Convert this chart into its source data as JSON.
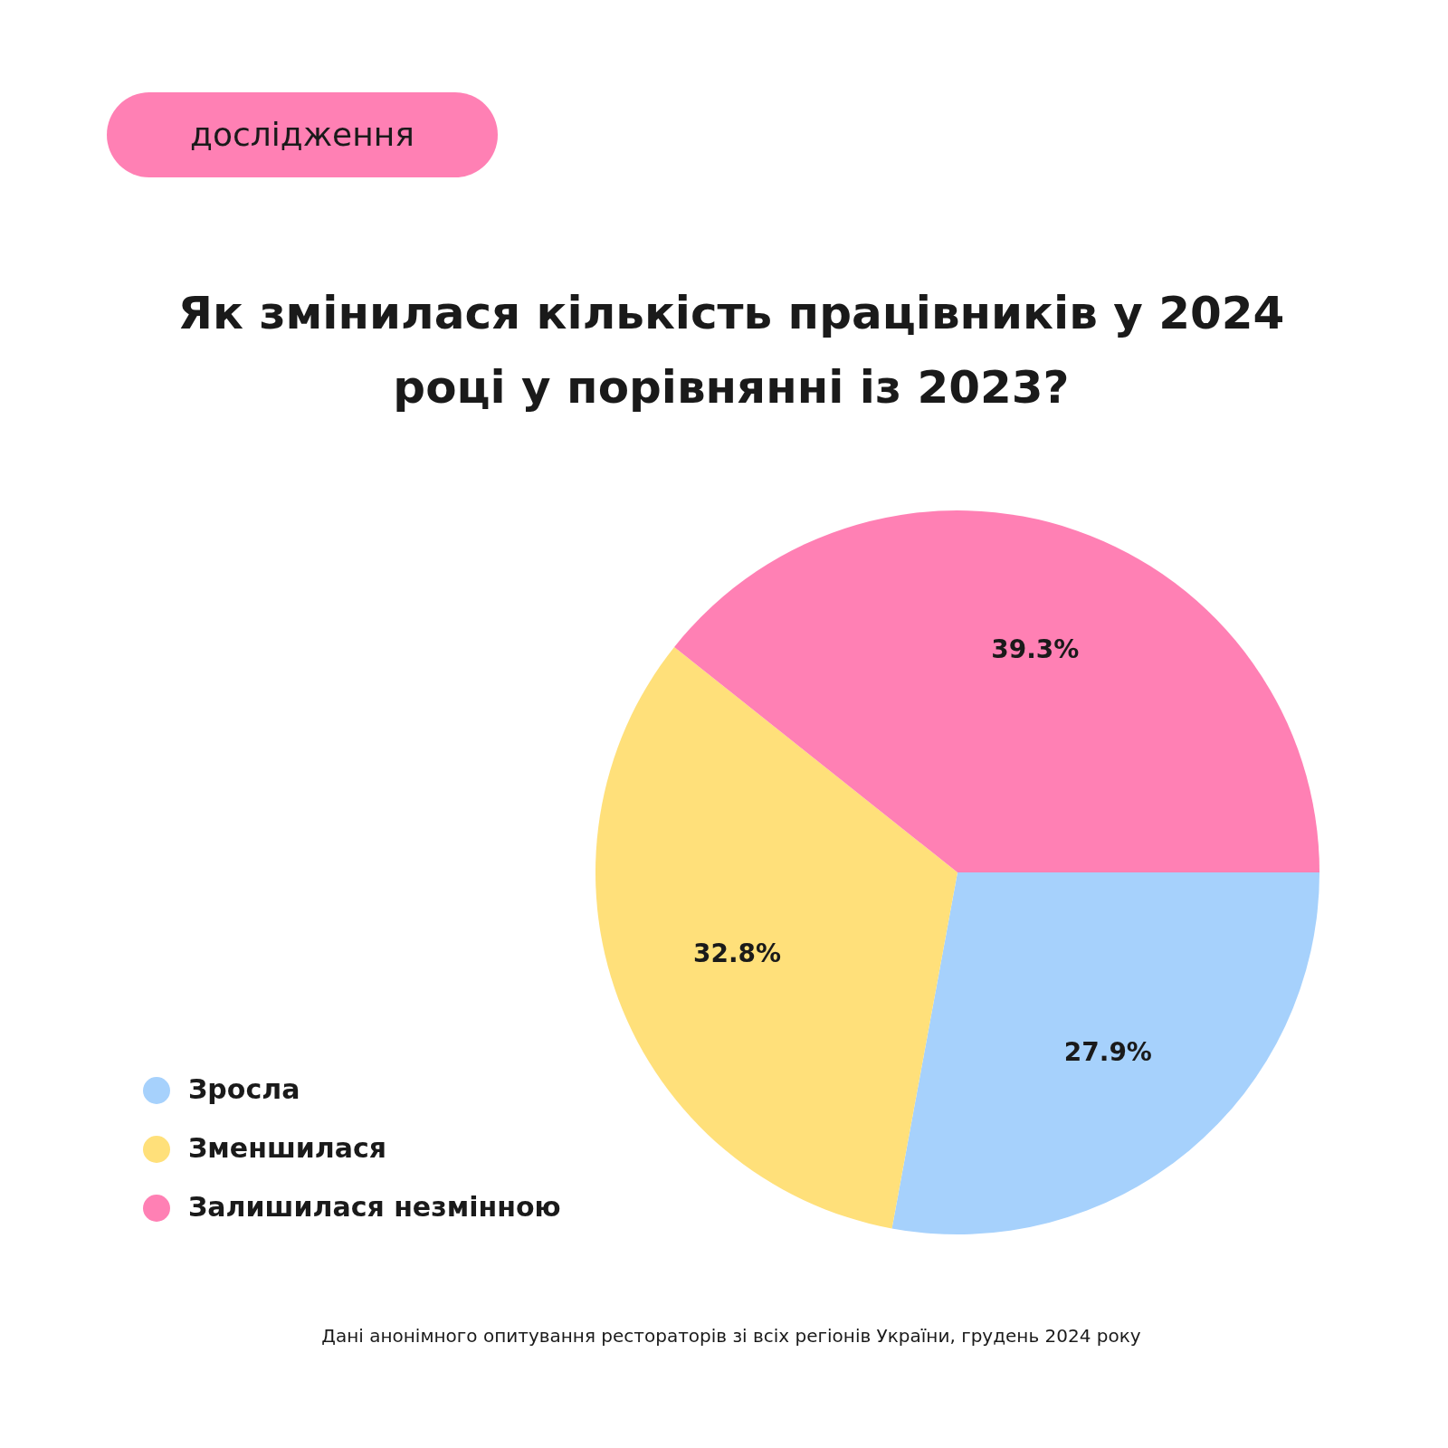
{
  "chart_data": {
    "type": "pie",
    "title": "Як змінилася кількість працівників у 2024 році у порівнянні із 2023?",
    "categories": [
      "Зросла",
      "Зменшилася",
      "Залишилася незмінною"
    ],
    "values": [
      27.9,
      32.8,
      39.3
    ],
    "value_labels": [
      "27.9%",
      "32.8%",
      "39.3%"
    ],
    "colors": [
      "#a6d1fc",
      "#ffe07a",
      "#ff80b4"
    ],
    "legend": "bottom left",
    "annotations": [
      "дослідження",
      "Дані анонімного опитування рестораторів зі всіх регіонів України, грудень 2024 року"
    ]
  }
}
